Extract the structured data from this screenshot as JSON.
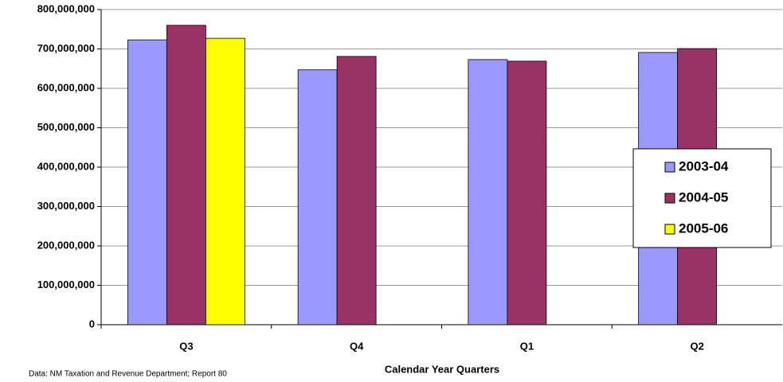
{
  "chart_data": {
    "type": "bar",
    "x_label": "Calendar Year Quarters",
    "source": "Data: NM Taxation and Revenue Department; Report 80",
    "categories": [
      "Q3",
      "Q4",
      "Q1",
      "Q2"
    ],
    "series": [
      {
        "name": "2003-04",
        "color": "#9999ff",
        "values": [
          723000000,
          647000000,
          673000000,
          691000000
        ]
      },
      {
        "name": "2004-05",
        "color": "#993366",
        "values": [
          760000000,
          681000000,
          669000000,
          701000000
        ]
      },
      {
        "name": "2005-06",
        "color": "#ffff00",
        "values": [
          727000000,
          null,
          null,
          null
        ]
      }
    ],
    "ylim": [
      0,
      800000000
    ],
    "yticks": [
      0,
      {
        "value": 100000000,
        "label": "100,000,000"
      },
      {
        "value": 200000000,
        "label": "200,000,000"
      },
      {
        "value": 300000000,
        "label": "300,000,000"
      },
      {
        "value": 400000000,
        "label": "400,000,000"
      },
      {
        "value": 500000000,
        "label": "500,000,000"
      },
      {
        "value": 600000000,
        "label": "600,000,000"
      },
      {
        "value": 700000000,
        "label": "700,000,000"
      },
      {
        "value": 800000000,
        "label": "800,000,000"
      }
    ],
    "grid": true,
    "legend": "right"
  }
}
